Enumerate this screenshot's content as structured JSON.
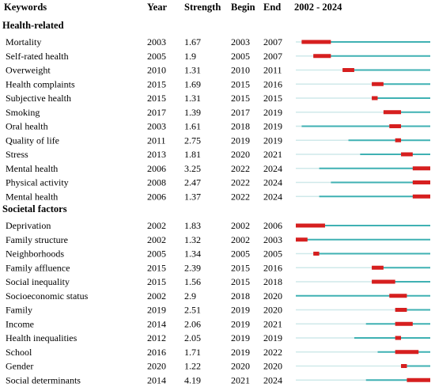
{
  "chart_data": {
    "type": "table",
    "columns": [
      "Keywords",
      "Year",
      "Strength",
      "Begin",
      "End",
      "2002 - 2024"
    ],
    "timeline": {
      "start": 2002,
      "end": 2024
    },
    "colors": {
      "timeline": "#3fb1b3",
      "burst": "#d61f1f",
      "faint": "#cfe9ea"
    },
    "sections": [
      {
        "name": "Health-related",
        "rows": [
          {
            "keyword": "Mortality",
            "year": "2003",
            "strength": "1.67",
            "begin": "2003",
            "end": "2007"
          },
          {
            "keyword": "Self-rated health",
            "year": "2005",
            "strength": "1.9",
            "begin": "2005",
            "end": "2007"
          },
          {
            "keyword": "Overweight",
            "year": "2010",
            "strength": "1.31",
            "begin": "2010",
            "end": "2011"
          },
          {
            "keyword": "Health complaints",
            "year": "2015",
            "strength": "1.69",
            "begin": "2015",
            "end": "2016"
          },
          {
            "keyword": "Subjective health",
            "year": "2015",
            "strength": "1.31",
            "begin": "2015",
            "end": "2015"
          },
          {
            "keyword": "Smoking",
            "year": "2017",
            "strength": "1.39",
            "begin": "2017",
            "end": "2019"
          },
          {
            "keyword": "Oral health",
            "year": "2003",
            "strength": "1.61",
            "begin": "2018",
            "end": "2019"
          },
          {
            "keyword": "Quality of life",
            "year": "2011",
            "strength": "2.75",
            "begin": "2019",
            "end": "2019"
          },
          {
            "keyword": "Stress",
            "year": "2013",
            "strength": "1.81",
            "begin": "2020",
            "end": "2021"
          },
          {
            "keyword": "Mental health",
            "year": "2006",
            "strength": "3.25",
            "begin": "2022",
            "end": "2024"
          },
          {
            "keyword": "Physical activity",
            "year": "2008",
            "strength": "2.47",
            "begin": "2022",
            "end": "2024"
          },
          {
            "keyword": "Mental health",
            "year": "2006",
            "strength": "1.37",
            "begin": "2022",
            "end": "2024"
          }
        ]
      },
      {
        "name": "Societal factors",
        "rows": [
          {
            "keyword": "Deprivation",
            "year": "2002",
            "strength": "1.83",
            "begin": "2002",
            "end": "2006"
          },
          {
            "keyword": "Family structure",
            "year": "2002",
            "strength": "1.32",
            "begin": "2002",
            "end": "2003"
          },
          {
            "keyword": "Neighborhoods",
            "year": "2005",
            "strength": "1.34",
            "begin": "2005",
            "end": "2005"
          },
          {
            "keyword": "Family affluence",
            "year": "2015",
            "strength": "2.39",
            "begin": "2015",
            "end": "2016"
          },
          {
            "keyword": "Social inequality",
            "year": "2015",
            "strength": "1.56",
            "begin": "2015",
            "end": "2018"
          },
          {
            "keyword": "Socioeconomic status",
            "year": "2002",
            "strength": "2.9",
            "begin": "2018",
            "end": "2020"
          },
          {
            "keyword": "Family",
            "year": "2019",
            "strength": "2.51",
            "begin": "2019",
            "end": "2020"
          },
          {
            "keyword": "Income",
            "year": "2014",
            "strength": "2.06",
            "begin": "2019",
            "end": "2021"
          },
          {
            "keyword": "Health inequalities",
            "year": "2012",
            "strength": "2.05",
            "begin": "2019",
            "end": "2019"
          },
          {
            "keyword": "School",
            "year": "2016",
            "strength": "1.71",
            "begin": "2019",
            "end": "2022"
          },
          {
            "keyword": "Gender",
            "year": "2020",
            "strength": "1.22",
            "begin": "2020",
            "end": "2020"
          },
          {
            "keyword": "Social determinants",
            "year": "2014",
            "strength": "4.19",
            "begin": "2021",
            "end": "2024"
          }
        ]
      }
    ]
  }
}
